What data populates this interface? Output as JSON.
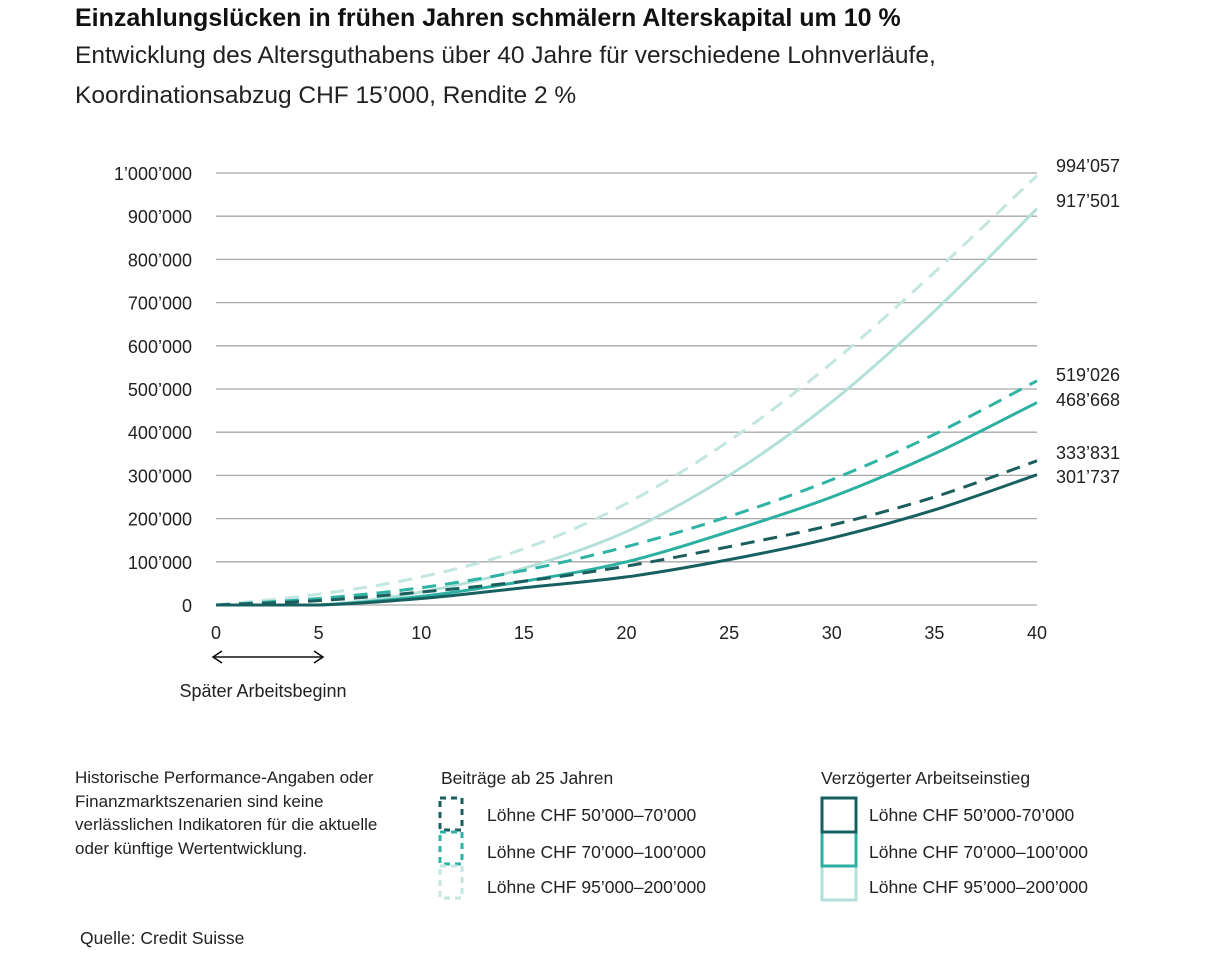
{
  "title": "Einzahlungslücken in frühen Jahren schmälern Alterskapital um 10 %",
  "subtitle_line1": "Entwicklung des Altersguthabens über 40 Jahre für verschiedene Lohnverläufe,",
  "subtitle_line2": "Koordinationsabzug CHF 15’000, Rendite 2 %",
  "annotation": "Später Arbeitsbeginn",
  "note": "Historische Performance-Angaben oder Finanzmarktszenarien sind keine verlässlichen Indikatoren für die aktuelle oder künftige Wertentwicklung.",
  "source_label": "Quelle:",
  "source_value": "Credit Suisse",
  "legend": {
    "group1_title": "Beiträge ab 25 Jahren",
    "group2_title": "Verzögerter Arbeitseinstieg",
    "group1_items": [
      "Löhne CHF 50’000–70’000",
      "Löhne CHF 70’000–100’000",
      "Löhne CHF 95’000–200’000"
    ],
    "group2_items": [
      "Löhne CHF 50’000-70’000",
      "Löhne CHF 70’000–100’000",
      "Löhne CHF 95’000–200’000"
    ]
  },
  "chart_data": {
    "type": "line",
    "x": [
      0,
      5,
      10,
      15,
      20,
      25,
      30,
      35,
      40
    ],
    "xlim": [
      0,
      40
    ],
    "ylim": [
      0,
      1000000
    ],
    "grid": true,
    "x_ticks": [
      "0",
      "5",
      "10",
      "15",
      "20",
      "25",
      "30",
      "35",
      "40"
    ],
    "y_ticks": [
      "0",
      "100’000",
      "200’000",
      "300’000",
      "400’000",
      "500’000",
      "600’000",
      "700’000",
      "800’000",
      "900’000",
      "1’000’000"
    ],
    "series": [
      {
        "name": "Beiträge ab 25 Jahren – Löhne CHF 50’000–70’000",
        "style": "dashed",
        "color": "#1b5e5d",
        "values": [
          0,
          10000,
          30000,
          55000,
          90000,
          135000,
          185000,
          250000,
          333831
        ],
        "end_label": "333’831"
      },
      {
        "name": "Beiträge ab 25 Jahren – Löhne CHF 70’000–100’000",
        "style": "dashed",
        "color": "#2fb3a4",
        "values": [
          0,
          15000,
          40000,
          80000,
          135000,
          205000,
          290000,
          395000,
          519026
        ],
        "end_label": "519’026"
      },
      {
        "name": "Beiträge ab 25 Jahren – Löhne CHF 95’000–200’000",
        "style": "dashed",
        "color": "#c2e6e0",
        "values": [
          0,
          25000,
          65000,
          130000,
          235000,
          380000,
          560000,
          770000,
          994057
        ],
        "end_label": "994’057"
      },
      {
        "name": "Verzögerter Arbeitseinstieg – Löhne CHF 50’000-70’000",
        "style": "solid",
        "color": "#17605f",
        "values": [
          0,
          0,
          15000,
          40000,
          65000,
          105000,
          155000,
          220000,
          301737
        ],
        "end_label": "301’737"
      },
      {
        "name": "Verzögerter Arbeitseinstieg – Löhne CHF 70’000–100’000",
        "style": "solid",
        "color": "#2bb0a1",
        "values": [
          0,
          0,
          20000,
          55000,
          100000,
          170000,
          250000,
          350000,
          468668
        ],
        "end_label": "468’668"
      },
      {
        "name": "Verzögerter Arbeitseinstieg – Löhne CHF 95’000–200’000",
        "style": "solid",
        "color": "#b3e0d9",
        "values": [
          0,
          0,
          30000,
          85000,
          170000,
          300000,
          470000,
          680000,
          917501
        ],
        "end_label": "917’501"
      }
    ]
  }
}
